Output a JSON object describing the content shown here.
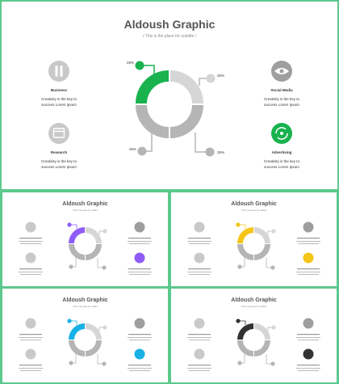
{
  "slide": {
    "title": "Aldoush Graphic",
    "subtitle": "/ This is the place for subtitle /"
  },
  "features": {
    "business": {
      "label": "Business",
      "text_1": "Creativity is the key to",
      "text_2": "success Lorem Ipsum",
      "icon": "pause-icon"
    },
    "research": {
      "label": "Research",
      "text_1": "Creativity is the key to",
      "text_2": "success Lorem Ipsum",
      "icon": "calendar-icon"
    },
    "social_media": {
      "label": "Social Media",
      "text_1": "Creativity is the key to",
      "text_2": "success Lorem Ipsum",
      "icon": "eye-icon"
    },
    "advertising": {
      "label": "Advertising",
      "text_1": "Creativity is the key to",
      "text_2": "success Lorem Ipsum",
      "icon": "refresh-icon"
    }
  },
  "segments": {
    "top_left": "25%",
    "top_right": "25%",
    "bottom_left": "25%",
    "bottom_right": "25%"
  },
  "colors": {
    "main_accent": "#19b24f",
    "variant_purple": "#8f5cf7",
    "variant_yellow": "#f5c518",
    "variant_blue": "#17b1e6",
    "variant_black": "#333333",
    "frame": "#5cc98d",
    "neutral_segment": "#b5b5b5",
    "light_segment": "#d6d6d6"
  }
}
